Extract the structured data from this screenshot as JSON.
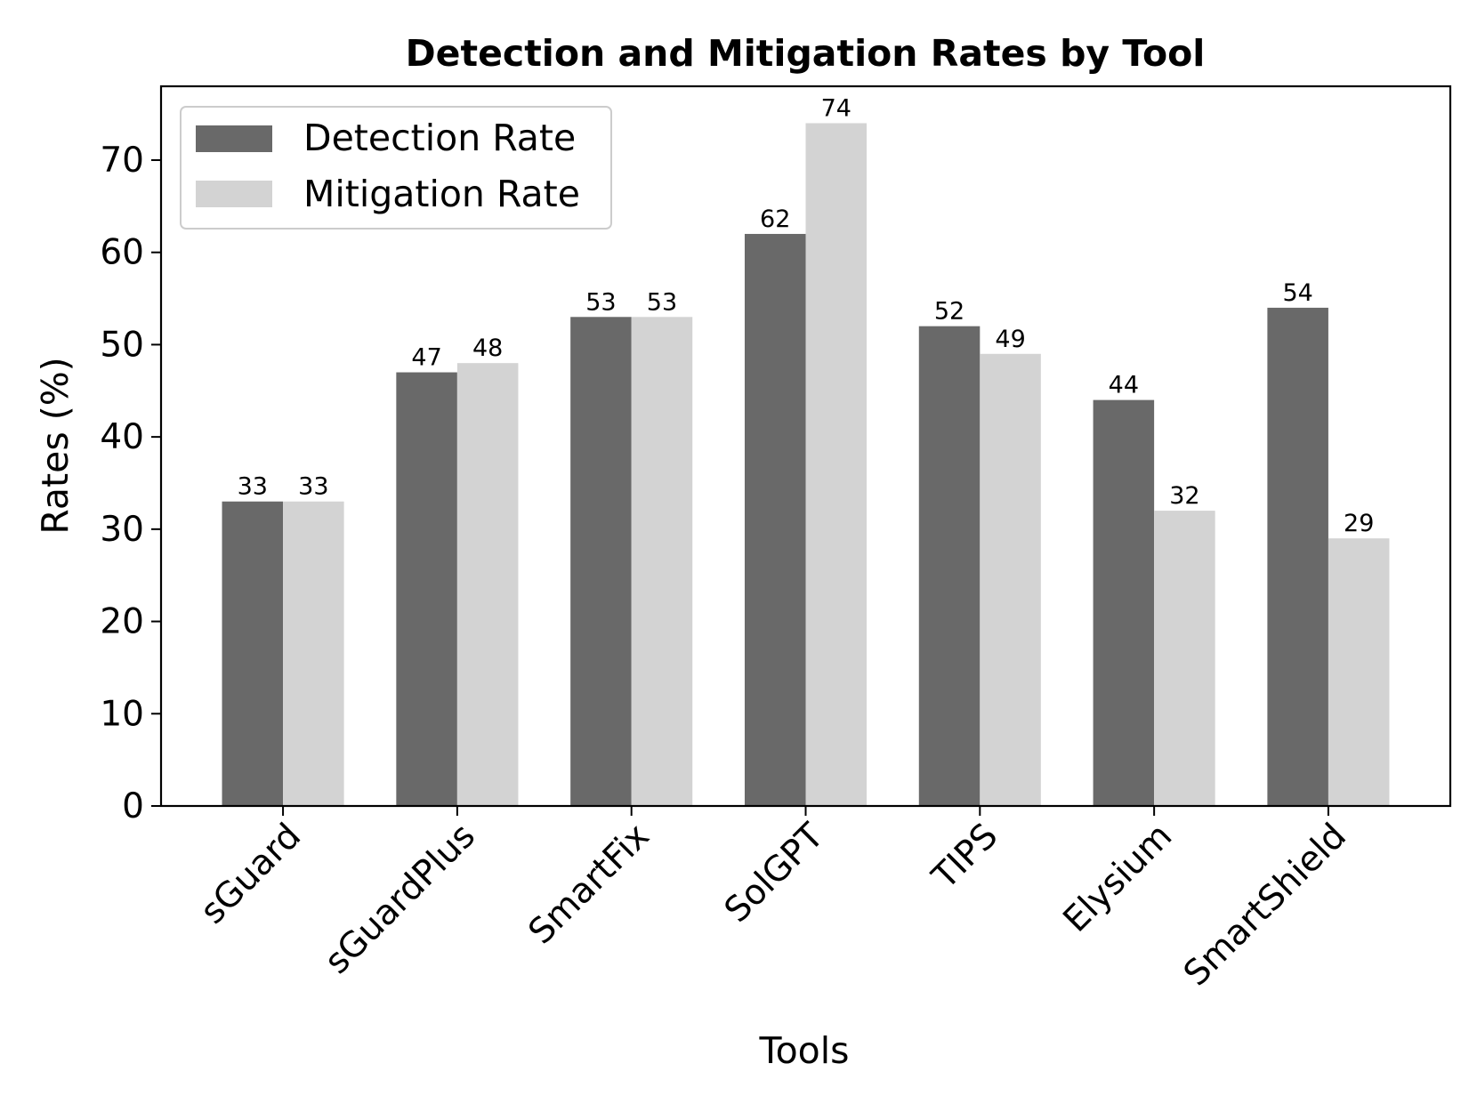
{
  "chart_data": {
    "type": "bar",
    "title": "Detection and Mitigation Rates by Tool",
    "xlabel": "Tools",
    "ylabel": "Rates (%)",
    "categories": [
      "sGuard",
      "sGuardPlus",
      "SmartFix",
      "SolGPT",
      "TIPS",
      "Elysium",
      "SmartShield"
    ],
    "series": [
      {
        "name": "Detection Rate",
        "color": "#696969",
        "values": [
          33,
          47,
          53,
          62,
          52,
          44,
          54
        ]
      },
      {
        "name": "Mitigation Rate",
        "color": "#d3d3d3",
        "values": [
          33,
          48,
          53,
          74,
          49,
          32,
          29
        ]
      }
    ],
    "ylim": [
      0,
      78
    ],
    "yticks": [
      0,
      10,
      20,
      30,
      40,
      50,
      60,
      70
    ],
    "grid": false,
    "legend_position": "top-left"
  }
}
